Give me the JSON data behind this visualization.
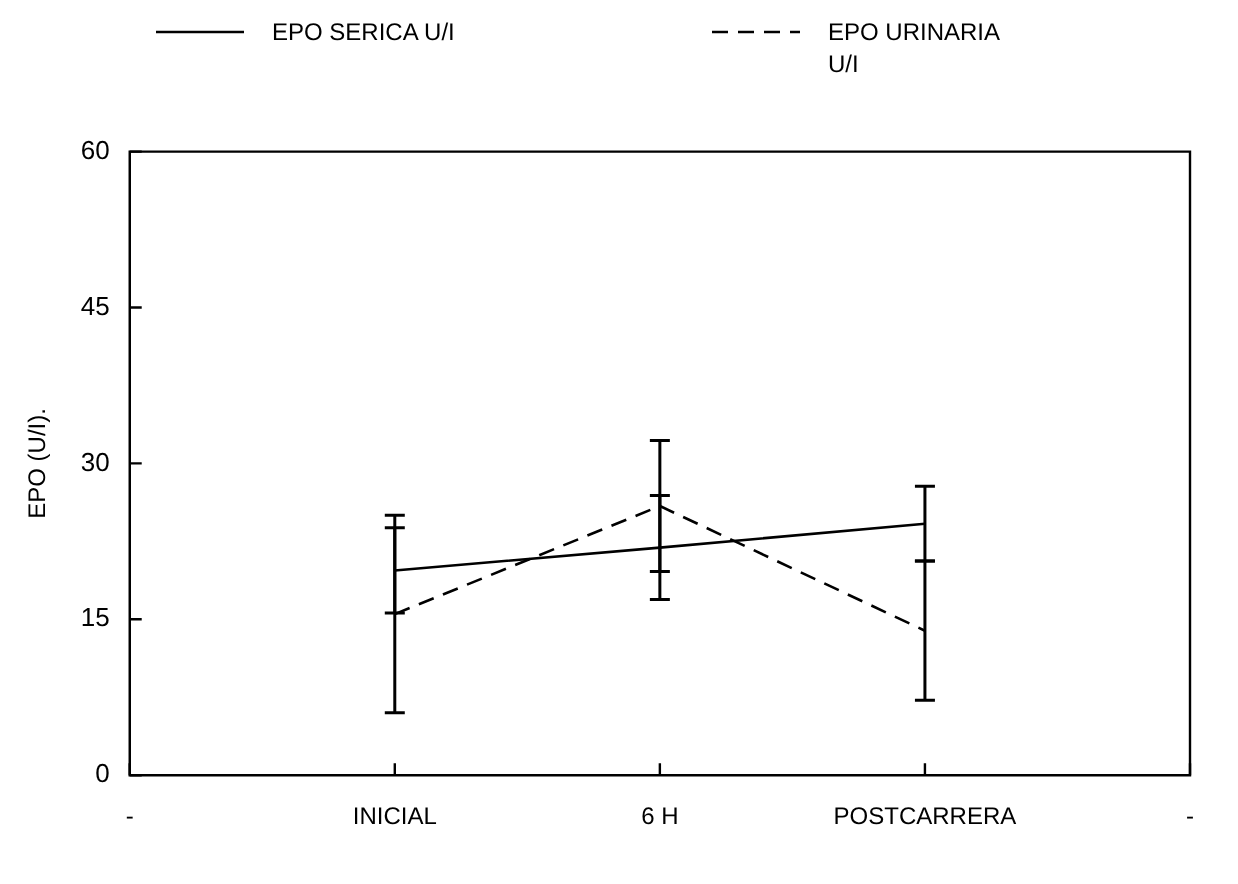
{
  "chart_data": {
    "type": "line",
    "ylabel": "EPO (U/I).",
    "categories": [
      "-",
      "INICIAL",
      "6 H",
      "POSTCARRERA",
      "-"
    ],
    "series": [
      {
        "name": "EPO SERICA U/I",
        "color": "#000000",
        "line_style": "solid",
        "values": [
          null,
          19.7,
          21.9,
          24.2,
          null
        ],
        "errors": [
          null,
          4.1,
          5,
          3.6,
          null
        ]
      },
      {
        "name": "EPO URINARIA U/I",
        "color": "#000000",
        "line_style": "dashed",
        "values": [
          null,
          15.5,
          25.9,
          13.9,
          null
        ],
        "errors": [
          null,
          9.5,
          6.3,
          6.7,
          null
        ]
      }
    ],
    "ylim": [
      0,
      60
    ],
    "yticks": [
      0,
      15,
      30,
      45,
      60
    ],
    "grid": false,
    "legend": "top",
    "marker": "none"
  }
}
